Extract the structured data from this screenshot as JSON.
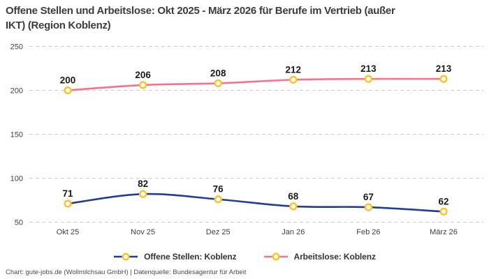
{
  "title_lines": [
    "Offene Stellen und Arbeitslose: Okt 2025 - März 2026 für Berufe im Vertrieb (außer",
    "IKT) (Region Koblenz)"
  ],
  "chart_data": {
    "type": "line",
    "categories": [
      "Okt 25",
      "Nov 25",
      "Dez 25",
      "Jan 26",
      "Feb 26",
      "März 26"
    ],
    "series": [
      {
        "name": "Offene Stellen: Koblenz",
        "values": [
          71,
          82,
          76,
          68,
          67,
          62
        ],
        "color": "#233D94"
      },
      {
        "name": "Arbeitslose: Koblenz",
        "values": [
          200,
          206,
          208,
          212,
          213,
          213
        ],
        "color": "#F8728B"
      }
    ],
    "marker_style": {
      "fill": "#FFFFFF",
      "stroke": "#FCC32C"
    },
    "y_ticks": [
      50,
      100,
      150,
      200,
      250
    ],
    "ylim": [
      50,
      250
    ],
    "grid": "horizontal-dashed",
    "legend_position": "bottom",
    "show_point_labels": true
  },
  "footer_text": "Chart: gute-jobs.de (Wollmilchsau GmbH) | Datenquelle: Bundesagentur für Arbeit",
  "colors": {
    "background": "#FFFFFF",
    "grid": "#CBCBCB",
    "tick_text": "#3F3F3F",
    "point_label_text": "#1A1A1A",
    "title_text": "#3C3C3C",
    "legend_text": "#333333",
    "footer_text": "#4A4A4A"
  }
}
